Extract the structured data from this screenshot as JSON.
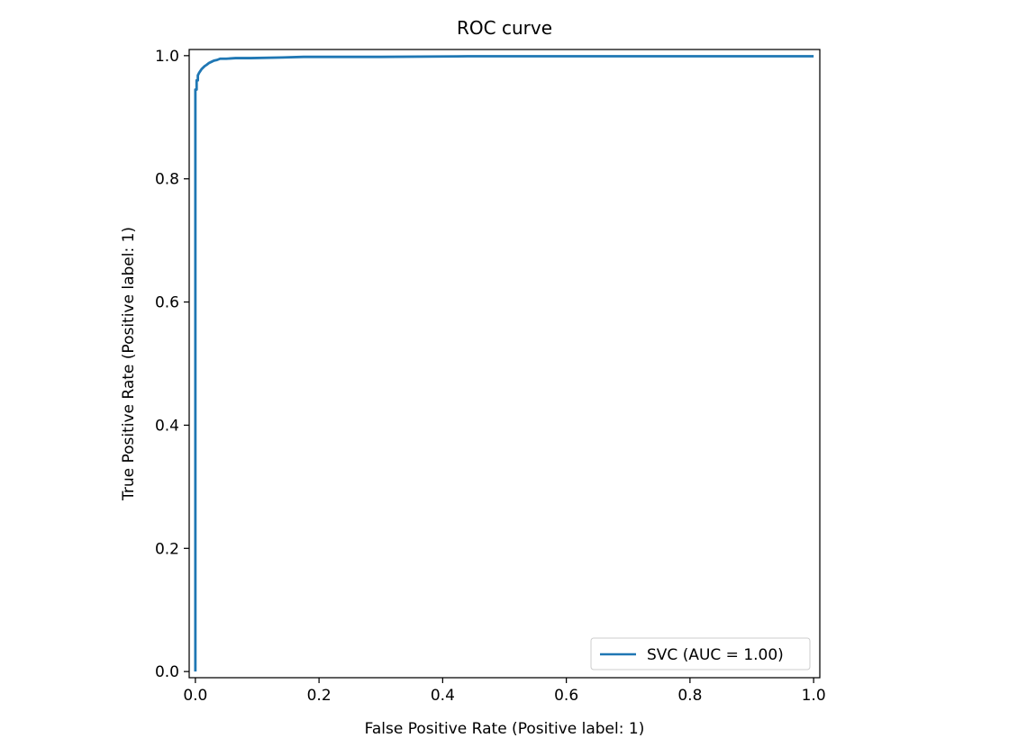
{
  "chart_data": {
    "type": "line",
    "title": "ROC curve",
    "xlabel": "False Positive Rate (Positive label: 1)",
    "ylabel": "True Positive Rate (Positive label: 1)",
    "xlim": [
      -0.01,
      1.01
    ],
    "ylim": [
      -0.01,
      1.01
    ],
    "xticks": [
      0.0,
      0.2,
      0.4,
      0.6,
      0.8,
      1.0
    ],
    "yticks": [
      0.0,
      0.2,
      0.4,
      0.6,
      0.8,
      1.0
    ],
    "xtick_labels": [
      "0.0",
      "0.2",
      "0.4",
      "0.6",
      "0.8",
      "1.0"
    ],
    "ytick_labels": [
      "0.0",
      "0.2",
      "0.4",
      "0.6",
      "0.8",
      "1.0"
    ],
    "grid": false,
    "legend_position": "lower-right",
    "series": [
      {
        "name": "SVC (AUC = 1.00)",
        "color": "#1f77b4",
        "x": [
          0.0,
          0.0,
          0.002,
          0.002,
          0.004,
          0.004,
          0.006,
          0.008,
          0.01,
          0.012,
          0.015,
          0.018,
          0.022,
          0.026,
          0.03,
          0.035,
          0.04,
          0.05,
          0.065,
          0.09,
          0.14,
          0.175,
          0.3,
          0.44,
          0.6,
          0.8,
          1.0
        ],
        "y": [
          0.0,
          0.945,
          0.945,
          0.96,
          0.96,
          0.968,
          0.972,
          0.975,
          0.978,
          0.98,
          0.983,
          0.985,
          0.988,
          0.99,
          0.992,
          0.993,
          0.995,
          0.995,
          0.996,
          0.996,
          0.997,
          0.998,
          0.998,
          0.999,
          0.999,
          0.999,
          0.999
        ]
      }
    ],
    "legend_label": "SVC (AUC = 1.00)"
  }
}
